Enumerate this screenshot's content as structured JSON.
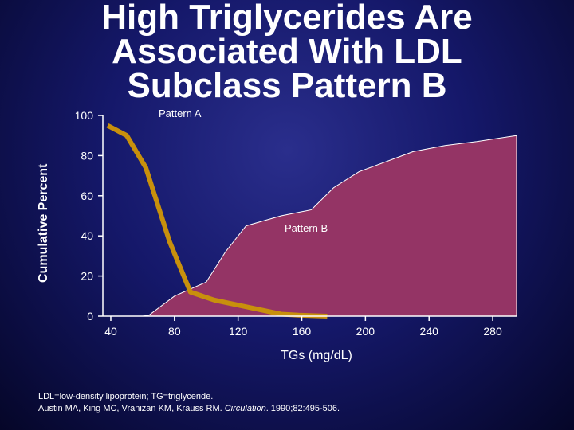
{
  "title_lines": [
    "High Triglycerides Are",
    "Associated With LDL",
    "Subclass Pattern B"
  ],
  "footnote": {
    "line1": "LDL=low-density lipoprotein; TG=triglyceride.",
    "line2_prefix": "Austin MA, King MC, Vranizan KM, Krauss RM. ",
    "line2_journal": "Circulation",
    "line2_suffix": ". 1990;82:495-506."
  },
  "chart_data": {
    "type": "area",
    "xlabel": "TGs (mg/dL)",
    "ylabel": "Cumulative Percent",
    "xlim": [
      35,
      295
    ],
    "ylim": [
      0,
      100
    ],
    "xticks": [
      40,
      80,
      120,
      160,
      200,
      240,
      280
    ],
    "yticks": [
      0,
      20,
      40,
      60,
      80,
      100
    ],
    "grid": false,
    "series": [
      {
        "name": "Pattern B",
        "kind": "area",
        "color": "#943465",
        "x": [
          43,
          60,
          64,
          80,
          100,
          112,
          125,
          147,
          166,
          180,
          196,
          230,
          250,
          270,
          295
        ],
        "y": [
          0,
          0,
          0.5,
          10,
          17,
          32,
          45,
          50,
          53,
          64,
          72,
          82,
          85,
          87,
          90
        ]
      },
      {
        "name": "Pattern A",
        "kind": "line",
        "color": "#c8900c",
        "x": [
          38,
          50,
          62,
          77,
          90,
          105,
          147,
          158,
          176
        ],
        "y": [
          95,
          90,
          74,
          37,
          12,
          8,
          1,
          0.5,
          0
        ]
      }
    ]
  },
  "colors": {
    "area_fill": "#943465",
    "line": "#c8900c",
    "axis": "#ffffff"
  }
}
